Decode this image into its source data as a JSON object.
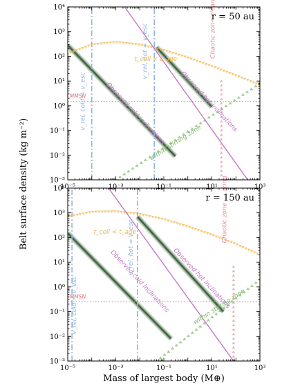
{
  "figure": {
    "ylabel": "Belt surface density (kg m⁻²)",
    "xlabel": "Mass of largest body (M⊕)"
  },
  "colors": {
    "tcoll": "#f5b54a",
    "inclination": "#c477c9",
    "stirring": "#7bb86a",
    "velocity": "#8fb4ea",
    "chaotic": "#e88d98",
    "mmsn": "#e0707c",
    "band_dark": "#3d5a3d",
    "band_light": "#9cb49c"
  },
  "chart_data": [
    {
      "type": "line",
      "panel_label": "r = 50 au",
      "xscale": "log",
      "yscale": "log",
      "xlim": [
        1e-05,
        1000
      ],
      "ylim": [
        0.001,
        10000
      ],
      "x_ticks": [
        "10⁻⁵",
        "10⁻³",
        "10⁻¹",
        "10¹",
        "10³"
      ],
      "y_ticks": [
        "10⁻³",
        "10⁻²",
        "10⁻¹",
        "10⁰",
        "10¹",
        "10²",
        "10³",
        "10⁴"
      ],
      "series": [
        {
          "key": "tcoll",
          "style": "triangle-down",
          "x": [
            1e-05,
            0.0001,
            0.001,
            0.01,
            0.1,
            1,
            10,
            100,
            1000
          ],
          "y": [
            130,
            300,
            380,
            300,
            180,
            90,
            40,
            17,
            7
          ]
        },
        {
          "key": "hot_incl",
          "style": "solid",
          "x": [
            0.001,
            1000
          ],
          "y": [
            32000,
            0.0002
          ]
        },
        {
          "key": "cold_band",
          "style": "band",
          "x": [
            1e-05,
            0.3
          ],
          "y": [
            280,
            0.009
          ]
        },
        {
          "key": "hot_band",
          "style": "band",
          "x": [
            0.05,
            10
          ],
          "y": [
            230,
            0.9
          ]
        },
        {
          "key": "stirring",
          "style": "triangle-up",
          "x": [
            0.001,
            1000
          ],
          "y": [
            0.001,
            8
          ]
        },
        {
          "key": "v_cold",
          "style": "dashdot-vertical",
          "x": [
            0.0001,
            0.0001
          ],
          "y": [
            0.001,
            10000
          ]
        },
        {
          "key": "v_hot",
          "style": "dashdot-vertical",
          "x": [
            0.04,
            0.04
          ],
          "y": [
            0.001,
            10000
          ]
        },
        {
          "key": "chaotic",
          "style": "triangle-up-vertical",
          "x": [
            25,
            25
          ],
          "y": [
            0.001,
            15
          ]
        },
        {
          "key": "mmsn",
          "style": "dotted-horizontal",
          "x": [
            1e-05,
            1000
          ],
          "y": [
            1.5,
            1.5
          ]
        }
      ],
      "annotations": [
        {
          "key": "tcoll_label",
          "x": 0.006,
          "y": 65,
          "angle": 0,
          "color": "tcoll"
        },
        {
          "key": "mmsn_label",
          "x": 1.2e-05,
          "y": 2.1,
          "angle": 0,
          "color": "mmsn"
        },
        {
          "key": "cold_label",
          "x": 0.0004,
          "y": 7,
          "angle": 47,
          "color": "inclination"
        },
        {
          "key": "hot_label",
          "x": 0.5,
          "y": 20,
          "angle": 47,
          "color": "inclination"
        },
        {
          "key": "vcold_label",
          "x": 5e-05,
          "y": 0.1,
          "angle": -90,
          "color": "velocity"
        },
        {
          "key": "vhot_label",
          "x": 0.02,
          "y": 12,
          "angle": -90,
          "color": "velocity"
        },
        {
          "key": "stirring_label",
          "x": 0.03,
          "y": 0.006,
          "angle": -33,
          "color": "stirring"
        },
        {
          "key": "chaotic_label",
          "x": 13,
          "y": 80,
          "angle": -90,
          "color": "chaotic"
        }
      ],
      "labels": {
        "tcoll_label": "t_coll < t_age",
        "mmsn_label": "MMSN",
        "cold_label": "Observed cold inclinations",
        "hot_label": "Observed hot inclinations",
        "vcold_label": "v_rel, cold = v_esc",
        "vhot_label": "v_rel, hot = v_esc",
        "stirring_label": "within stirring zone",
        "chaotic_label": "Chaotic zone clearing"
      }
    },
    {
      "type": "line",
      "panel_label": "r = 150 au",
      "xscale": "log",
      "yscale": "log",
      "xlim": [
        1e-05,
        1000
      ],
      "ylim": [
        0.001,
        10000
      ],
      "x_ticks": [
        "10⁻⁵",
        "10⁻³",
        "10⁻¹",
        "10¹",
        "10³"
      ],
      "y_ticks": [
        "10⁻³",
        "10⁻²",
        "10⁻¹",
        "10⁰",
        "10¹",
        "10²",
        "10³",
        "10⁴"
      ],
      "series": [
        {
          "key": "tcoll",
          "style": "triangle-down",
          "x": [
            1e-05,
            0.0001,
            0.001,
            0.01,
            0.1,
            1,
            10,
            100,
            1000
          ],
          "y": [
            700,
            1100,
            1150,
            900,
            550,
            280,
            130,
            55,
            20
          ]
        },
        {
          "key": "hot_incl",
          "style": "solid",
          "x": [
            0.0005,
            80
          ],
          "y": [
            10000,
            0.001
          ]
        },
        {
          "key": "cold_band",
          "style": "band",
          "x": [
            1e-05,
            0.2
          ],
          "y": [
            150,
            0.008
          ]
        },
        {
          "key": "hot_band",
          "style": "band",
          "x": [
            0.008,
            30
          ],
          "y": [
            700,
            0.1
          ]
        },
        {
          "key": "stirring",
          "style": "triangle-up",
          "x": [
            0.05,
            1000
          ],
          "y": [
            0.001,
            2
          ]
        },
        {
          "key": "v_cold",
          "style": "dashdot-vertical",
          "x": [
            1.5e-05,
            1.5e-05
          ],
          "y": [
            0.001,
            10000
          ]
        },
        {
          "key": "v_hot",
          "style": "dashdot-vertical",
          "x": [
            0.008,
            0.008
          ],
          "y": [
            0.001,
            10000
          ]
        },
        {
          "key": "chaotic",
          "style": "triangle-up-vertical",
          "x": [
            80,
            80
          ],
          "y": [
            0.001,
            10
          ]
        },
        {
          "key": "mmsn",
          "style": "dotted-horizontal",
          "x": [
            1e-05,
            1000
          ],
          "y": [
            0.25,
            0.25
          ]
        }
      ],
      "annotations": [
        {
          "key": "tcoll_label",
          "x": 0.00012,
          "y": 140,
          "angle": 0,
          "color": "tcoll"
        },
        {
          "key": "mmsn_label",
          "x": 1.2e-05,
          "y": 0.34,
          "angle": 0,
          "color": "mmsn"
        },
        {
          "key": "cold_label",
          "x": 0.0006,
          "y": 25,
          "angle": 47,
          "color": "inclination"
        },
        {
          "key": "hot_label",
          "x": 0.25,
          "y": 30,
          "angle": 47,
          "color": "inclination"
        },
        {
          "key": "vcold_label",
          "x": 2.2e-05,
          "y": 0.012,
          "angle": -90,
          "color": "velocity"
        },
        {
          "key": "vhot_label",
          "x": 0.005,
          "y": 3,
          "angle": -90,
          "color": "velocity"
        },
        {
          "key": "stirring_label",
          "x": 2,
          "y": 0.03,
          "angle": -33,
          "color": "stirring"
        },
        {
          "key": "chaotic_label",
          "x": 40,
          "y": 60,
          "angle": -90,
          "color": "chaotic"
        }
      ],
      "labels": {
        "tcoll_label": "t_coll < t_age",
        "mmsn_label": "MMSN",
        "cold_label": "Observed cold inclinations",
        "hot_label": "Observed hot inclinations",
        "vcold_label": "v_rel, cold = v_esc",
        "vhot_label": "v_rel, hot = v_esc",
        "stirring_label": "within stirring zone",
        "chaotic_label": "Chaotic zone clearing"
      }
    }
  ]
}
